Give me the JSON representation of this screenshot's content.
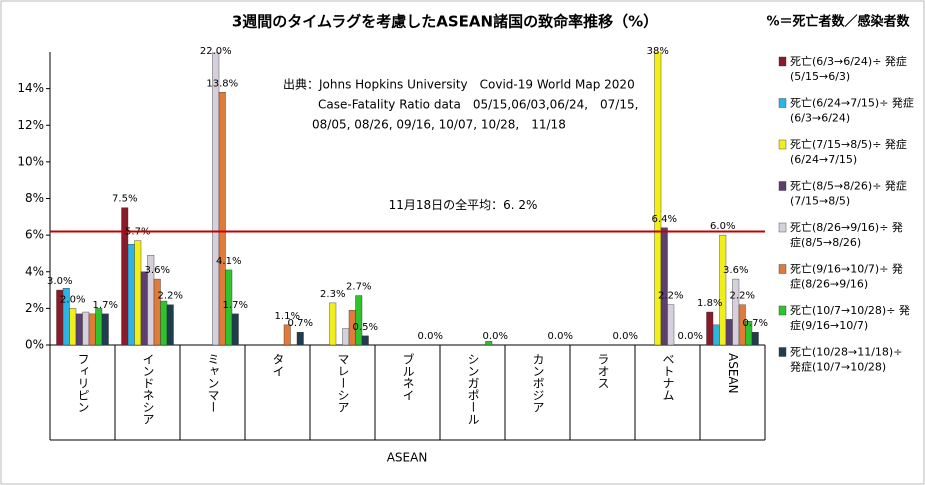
{
  "chart_data": {
    "type": "bar",
    "title": "3週間のタイムラグを考慮したASEAN諸国の致命率推移（%）",
    "subtitle": "%＝死亡者数／感染者数",
    "annotations": [
      "出典：Johns Hopkins University　Covid-19 World Map 2020",
      "Case-Fatality Ratio data　05/15,06/03,06/24,　07/15,",
      "08/05, 08/26, 09/16, 10/07, 10/28,　11/18"
    ],
    "x_label": "ASEAN",
    "categories": [
      "フィリピン",
      "インドネシア",
      "ミャンマー",
      "タイ",
      "マレーシア",
      "ブルネイ",
      "シンガポール",
      "カンボジア",
      "ラオス",
      "ベトナム",
      "ASEAN"
    ],
    "ylim": [
      0,
      16
    ],
    "yticks": [
      {
        "value": 0,
        "label": "0%"
      },
      {
        "value": 2,
        "label": "2%"
      },
      {
        "value": 4,
        "label": "4%"
      },
      {
        "value": 6,
        "label": "6%"
      },
      {
        "value": 8,
        "label": "8%"
      },
      {
        "value": 10,
        "label": "10%"
      },
      {
        "value": 12,
        "label": "12%"
      },
      {
        "value": 14,
        "label": "14%"
      }
    ],
    "grid": false,
    "reference_line": {
      "value": 6.2,
      "label": "11月18日の全平均：6. 2%",
      "color": "#c00000"
    },
    "series": [
      {
        "name": "死亡(6/3→6/24)÷ 発症\n(5/15→6/3)",
        "color": "#8b1a2b",
        "values": [
          3.0,
          7.5,
          0,
          0,
          0,
          0,
          0,
          0,
          0,
          0,
          1.8
        ],
        "value_labels": [
          "3.0%",
          "7.5%",
          null,
          null,
          null,
          null,
          null,
          null,
          null,
          null,
          "1.8%"
        ]
      },
      {
        "name": "死亡(6/24→7/15)÷ 発症\n(6/3→6/24)",
        "color": "#2bb5e6",
        "values": [
          3.1,
          5.5,
          0,
          0,
          0,
          0,
          0,
          0,
          0,
          0,
          1.1
        ],
        "value_labels": [
          null,
          null,
          null,
          null,
          null,
          null,
          null,
          null,
          null,
          null,
          null
        ]
      },
      {
        "name": "死亡(7/15→8/5)÷ 発症\n(6/24→7/15)",
        "color": "#f2ee1a",
        "values": [
          2.0,
          5.7,
          0,
          0,
          2.3,
          0,
          0,
          0,
          0,
          38,
          6.0
        ],
        "value_labels": [
          "2.0%",
          "5.7%",
          null,
          null,
          "2.3%",
          null,
          null,
          null,
          null,
          "38%",
          "6.0%"
        ]
      },
      {
        "name": "死亡(8/5→8/26)÷ 発症\n(7/15→8/5)",
        "color": "#5b3f6e",
        "values": [
          1.7,
          4.0,
          0,
          0,
          0,
          0,
          0,
          0,
          0,
          6.4,
          1.4
        ],
        "value_labels": [
          null,
          null,
          null,
          null,
          null,
          null,
          null,
          null,
          null,
          "6.4%",
          null
        ]
      },
      {
        "name": "死亡(8/26→9/16)÷ 発\n症(8/5→8/26)",
        "color": "#d6d0dc",
        "values": [
          1.8,
          4.9,
          22.0,
          0,
          0.9,
          0,
          0,
          0,
          0,
          2.2,
          3.6
        ],
        "value_labels": [
          null,
          null,
          "22.0%",
          null,
          null,
          null,
          null,
          null,
          null,
          "2.2%",
          "3.6%"
        ]
      },
      {
        "name": "死亡(9/16→10/7)÷ 発\n症(8/26→9/16)",
        "color": "#e07b39",
        "values": [
          1.7,
          3.6,
          13.8,
          1.1,
          1.9,
          0,
          0,
          0,
          0,
          0,
          2.2
        ],
        "value_labels": [
          null,
          "3.6%",
          "13.8%",
          "1.1%",
          null,
          null,
          null,
          null,
          null,
          null,
          "2.2%"
        ]
      },
      {
        "name": "死亡(10/7→10/28)÷ 発\n症(9/16→10/7)",
        "color": "#2ec42e",
        "values": [
          2.0,
          2.4,
          4.1,
          0,
          2.7,
          0,
          0.2,
          0,
          0,
          0,
          1.3
        ],
        "value_labels": [
          null,
          null,
          "4.1%",
          null,
          "2.7%",
          null,
          null,
          null,
          null,
          null,
          null
        ]
      },
      {
        "name": "死亡(10/28→11/18)÷\n発症(10/7→10/28)",
        "color": "#1f3d4f",
        "values": [
          1.7,
          2.2,
          1.7,
          0.7,
          0.5,
          0.0,
          0.0,
          0.0,
          0.0,
          0.0,
          0.7
        ],
        "value_labels": [
          "1.7%",
          "2.2%",
          "1.7%",
          "0.7%",
          "0.5%",
          "0.0%",
          "0.0%",
          "0.0%",
          "0.0%",
          "0.0%",
          "0.7%"
        ]
      }
    ]
  }
}
